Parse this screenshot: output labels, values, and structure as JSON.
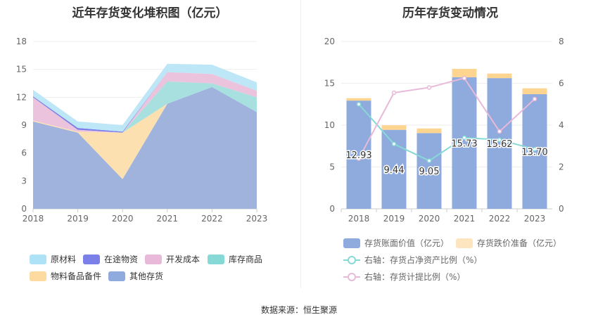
{
  "left_title": "近年存货变化堆积图（亿元）",
  "right_title": "历年存货变动情况",
  "source": "数据来源：恒生聚源",
  "chart_data": [
    {
      "type": "area",
      "stacked": true,
      "title": "近年存货变化堆积图（亿元）",
      "categories": [
        "2018",
        "2019",
        "2020",
        "2021",
        "2022",
        "2023"
      ],
      "ylim": [
        0,
        18
      ],
      "yticks": [
        "0",
        "3",
        "6",
        "9",
        "12",
        "15",
        "18"
      ],
      "series": [
        {
          "name": "其他存货",
          "color": "#9fb3dd",
          "values": [
            9.4,
            8.2,
            3.2,
            11.3,
            13.1,
            10.4
          ]
        },
        {
          "name": "物料备品备件",
          "color": "#fde0b0",
          "values": [
            0.1,
            0.1,
            5.0,
            0.0,
            0.0,
            0.0
          ]
        },
        {
          "name": "库存商品",
          "color": "#a8e0df",
          "values": [
            0.0,
            0.0,
            0.0,
            2.4,
            0.4,
            1.6
          ]
        },
        {
          "name": "开发成本",
          "color": "#ecc3dd",
          "values": [
            2.5,
            0.2,
            0.0,
            1.0,
            1.0,
            0.7
          ]
        },
        {
          "name": "在途物资",
          "color": "#7b7fe8",
          "values": [
            0.1,
            0.2,
            0.1,
            0.0,
            0.0,
            0.0
          ]
        },
        {
          "name": "原材料",
          "color": "#bde6f7",
          "values": [
            0.7,
            0.7,
            0.7,
            0.9,
            1.0,
            0.9
          ]
        }
      ],
      "legend": [
        {
          "name": "原材料",
          "color": "#aee3f7"
        },
        {
          "name": "在途物资",
          "color": "#7b7fe8"
        },
        {
          "name": "开发成本",
          "color": "#e8b9d8"
        },
        {
          "name": "库存商品",
          "color": "#86d9d6"
        },
        {
          "name": "物料备品备件",
          "color": "#fddba0"
        },
        {
          "name": "其他存货",
          "color": "#8faadc"
        }
      ]
    },
    {
      "type": "bar",
      "stacked": true,
      "title": "历年存货变动情况",
      "categories": [
        "2018",
        "2019",
        "2020",
        "2021",
        "2022",
        "2023"
      ],
      "ylim": [
        0,
        20
      ],
      "yticks": [
        "0",
        "5",
        "10",
        "15",
        "20"
      ],
      "y2lim": [
        0,
        8
      ],
      "y2ticks": [
        "0",
        "2",
        "4",
        "6",
        "8"
      ],
      "series": [
        {
          "name": "存货账面价值（亿元）",
          "color": "#8faadc",
          "values": [
            12.93,
            9.44,
            9.05,
            15.73,
            15.62,
            13.7
          ],
          "labels": [
            "12.93",
            "9.44",
            "9.05",
            "15.73",
            "15.62",
            "13.70"
          ]
        },
        {
          "name": "存货跌价准备（亿元）",
          "color": "#fdd591",
          "values": [
            0.3,
            0.55,
            0.55,
            1.0,
            0.55,
            0.7
          ]
        }
      ],
      "line_series": [
        {
          "name": "右轴：存货占净资产比例（%）",
          "color": "#86d9d6",
          "axis": "right",
          "values": [
            5.0,
            3.1,
            2.3,
            3.4,
            3.3,
            2.85
          ]
        },
        {
          "name": "右轴：存货计提比例（%）",
          "color": "#e8b9d8",
          "axis": "right",
          "values": [
            2.4,
            5.55,
            5.8,
            6.25,
            3.7,
            5.25
          ]
        }
      ]
    }
  ]
}
